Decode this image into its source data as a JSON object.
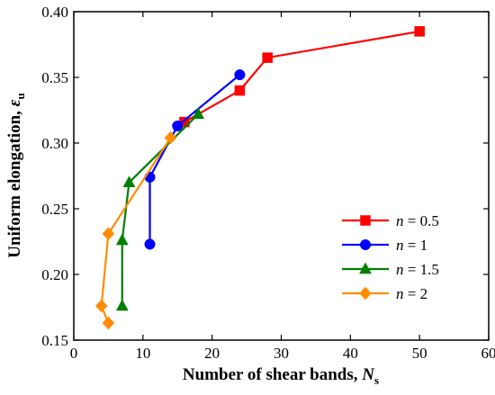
{
  "chart_data": {
    "type": "line",
    "xlabel": "Number of shear bands, ",
    "xlabel_symbol": "N",
    "xlabel_sub": "s",
    "ylabel": "Uniform elongation, ",
    "ylabel_symbol": "ε",
    "ylabel_sub": "u",
    "xlim": [
      0,
      60
    ],
    "ylim": [
      0.15,
      0.4
    ],
    "xticks": [
      0,
      10,
      20,
      30,
      40,
      50,
      60
    ],
    "yticks": [
      0.15,
      0.2,
      0.25,
      0.3,
      0.35,
      0.4
    ],
    "ytick_labels": [
      "0.15",
      "0.20",
      "0.25",
      "0.30",
      "0.35",
      "0.40"
    ],
    "grid": false,
    "legend_position": "bottom-right",
    "series": [
      {
        "name": "n = 0.5",
        "name_symbol": "n",
        "name_value": " = 0.5",
        "color": "#ff0000",
        "marker": "square",
        "x": [
          16,
          24,
          28,
          50
        ],
        "y": [
          0.316,
          0.34,
          0.365,
          0.385
        ]
      },
      {
        "name": "n = 1",
        "name_symbol": "n",
        "name_value": " = 1",
        "color": "#0000ff",
        "marker": "circle",
        "x": [
          11,
          11,
          15,
          24
        ],
        "y": [
          0.223,
          0.274,
          0.313,
          0.352
        ]
      },
      {
        "name": "n = 1.5",
        "name_symbol": "n",
        "name_value": " = 1.5",
        "color": "#008000",
        "marker": "triangle",
        "x": [
          7,
          7,
          8,
          18
        ],
        "y": [
          0.176,
          0.226,
          0.27,
          0.322
        ]
      },
      {
        "name": "n = 2",
        "name_symbol": "n",
        "name_value": " = 2",
        "color": "#ff8c00",
        "marker": "diamond",
        "x": [
          5,
          4,
          5,
          14
        ],
        "y": [
          0.163,
          0.176,
          0.231,
          0.304
        ]
      }
    ]
  }
}
